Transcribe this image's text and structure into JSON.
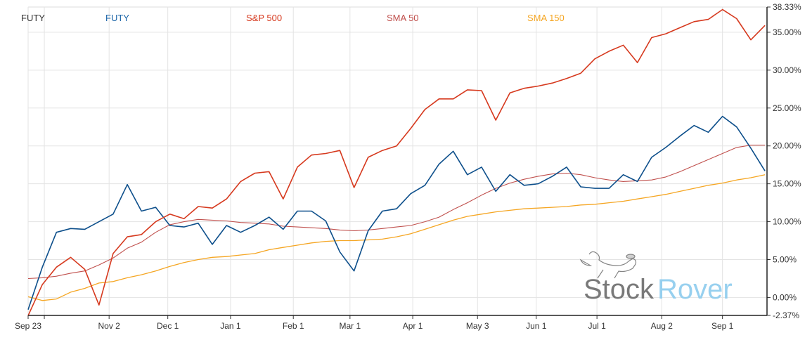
{
  "chart_data": {
    "type": "line",
    "title": "",
    "xlabel": "",
    "ylabel": "",
    "y_axis_position": "right",
    "y_format": "percent",
    "ylim": [
      -2.37,
      38.33
    ],
    "yticks": [
      "38.33%",
      "35.00%",
      "30.00%",
      "25.00%",
      "20.00%",
      "15.00%",
      "10.00%",
      "5.00%",
      "0.00%",
      "-2.37%"
    ],
    "ytick_values": [
      38.33,
      35,
      30,
      25,
      20,
      15,
      10,
      5,
      0,
      -2.37
    ],
    "xlim": [
      "2020-09-23",
      "2021-09-23"
    ],
    "xticks": [
      {
        "date": "2020-09-23",
        "label": "Sep 23"
      },
      {
        "date": "2020-10-01",
        "label": ""
      },
      {
        "date": "2020-11-02",
        "label": "Nov 2"
      },
      {
        "date": "2020-12-01",
        "label": "Dec 1"
      },
      {
        "date": "2021-01-01",
        "label": "Jan 1"
      },
      {
        "date": "2021-02-01",
        "label": "Feb 1"
      },
      {
        "date": "2021-03-01",
        "label": "Mar 1"
      },
      {
        "date": "2021-04-01",
        "label": "Apr 1"
      },
      {
        "date": "2021-05-03",
        "label": "May 3"
      },
      {
        "date": "2021-06-01",
        "label": "Jun 1"
      },
      {
        "date": "2021-07-01",
        "label": "Jul 1"
      },
      {
        "date": "2021-08-02",
        "label": "Aug 2"
      },
      {
        "date": "2021-09-01",
        "label": "Sep 1"
      }
    ],
    "grid": true,
    "legend_position": "top",
    "legend_title": "FUTY",
    "dates": [
      "2020-09-23",
      "2020-09-30",
      "2020-10-07",
      "2020-10-14",
      "2020-10-21",
      "2020-10-28",
      "2020-11-04",
      "2020-11-11",
      "2020-11-18",
      "2020-11-25",
      "2020-12-02",
      "2020-12-09",
      "2020-12-16",
      "2020-12-23",
      "2020-12-30",
      "2021-01-06",
      "2021-01-13",
      "2021-01-20",
      "2021-01-27",
      "2021-02-03",
      "2021-02-10",
      "2021-02-17",
      "2021-02-24",
      "2021-03-03",
      "2021-03-10",
      "2021-03-17",
      "2021-03-24",
      "2021-03-31",
      "2021-04-07",
      "2021-04-14",
      "2021-04-21",
      "2021-04-28",
      "2021-05-05",
      "2021-05-12",
      "2021-05-19",
      "2021-05-26",
      "2021-06-02",
      "2021-06-09",
      "2021-06-16",
      "2021-06-23",
      "2021-06-30",
      "2021-07-07",
      "2021-07-14",
      "2021-07-21",
      "2021-07-28",
      "2021-08-04",
      "2021-08-11",
      "2021-08-18",
      "2021-08-25",
      "2021-09-01",
      "2021-09-08",
      "2021-09-15",
      "2021-09-22"
    ],
    "series": [
      {
        "name": "FUTY",
        "color": "#0d4f8b",
        "width": 1.6,
        "values": [
          -1.6,
          4.0,
          8.6,
          9.1,
          9.0,
          10.0,
          11.0,
          14.9,
          11.4,
          11.9,
          9.5,
          9.3,
          9.8,
          7.0,
          9.5,
          8.6,
          9.5,
          10.6,
          9.0,
          11.4,
          11.4,
          10.1,
          6.0,
          3.5,
          8.8,
          11.4,
          11.7,
          13.7,
          14.8,
          17.6,
          19.3,
          16.2,
          17.2,
          14.0,
          16.2,
          14.8,
          15.0,
          16.0,
          17.2,
          14.6,
          14.4,
          14.4,
          16.2,
          15.3,
          18.5,
          19.8,
          21.3,
          22.7,
          21.8,
          23.9,
          22.5,
          19.7,
          16.7
        ]
      },
      {
        "name": "S&P 500",
        "color": "#d6391e",
        "width": 1.6,
        "values": [
          -2.4,
          1.7,
          4.0,
          5.3,
          3.7,
          -1.0,
          5.8,
          8.0,
          8.3,
          10.0,
          11.0,
          10.4,
          12.0,
          11.8,
          13.0,
          15.3,
          16.4,
          16.6,
          13.0,
          17.2,
          18.8,
          19.0,
          19.4,
          14.5,
          18.5,
          19.4,
          20.0,
          22.3,
          24.8,
          26.2,
          26.2,
          27.4,
          27.3,
          23.4,
          27.0,
          27.6,
          27.9,
          28.3,
          28.9,
          29.6,
          31.5,
          32.5,
          33.3,
          31.0,
          34.3,
          34.8,
          35.6,
          36.4,
          36.7,
          38.0,
          36.8,
          34.0,
          35.9
        ]
      },
      {
        "name": "SMA 50",
        "color": "#c0504d",
        "width": 1.1,
        "values": [
          2.5,
          2.6,
          2.8,
          3.2,
          3.5,
          4.3,
          5.2,
          6.5,
          7.3,
          8.6,
          9.6,
          10.0,
          10.3,
          10.2,
          10.1,
          9.9,
          9.8,
          9.7,
          9.4,
          9.3,
          9.2,
          9.1,
          8.9,
          8.8,
          8.9,
          9.1,
          9.3,
          9.5,
          10.0,
          10.6,
          11.6,
          12.5,
          13.5,
          14.4,
          15.1,
          15.6,
          16.0,
          16.3,
          16.4,
          16.2,
          15.8,
          15.5,
          15.3,
          15.4,
          15.5,
          15.9,
          16.6,
          17.4,
          18.2,
          19.0,
          19.8,
          20.1,
          20.1
        ]
      },
      {
        "name": "SMA 150",
        "color": "#f5a623",
        "width": 1.3,
        "values": [
          0.1,
          -0.4,
          -0.2,
          0.7,
          1.2,
          1.9,
          2.1,
          2.6,
          3.0,
          3.5,
          4.1,
          4.6,
          5.0,
          5.3,
          5.4,
          5.6,
          5.8,
          6.3,
          6.6,
          6.9,
          7.2,
          7.4,
          7.5,
          7.5,
          7.6,
          7.7,
          8.0,
          8.4,
          9.0,
          9.6,
          10.2,
          10.7,
          11.0,
          11.3,
          11.5,
          11.7,
          11.8,
          11.9,
          12.0,
          12.2,
          12.3,
          12.5,
          12.7,
          13.0,
          13.3,
          13.6,
          14.0,
          14.4,
          14.8,
          15.1,
          15.5,
          15.8,
          16.2
        ]
      }
    ]
  },
  "legend_title_color": "#333333",
  "logo": {
    "part1": "Stock",
    "part2": "Rover",
    "color1": "#6b6b6b",
    "color2": "#8ccbee"
  }
}
